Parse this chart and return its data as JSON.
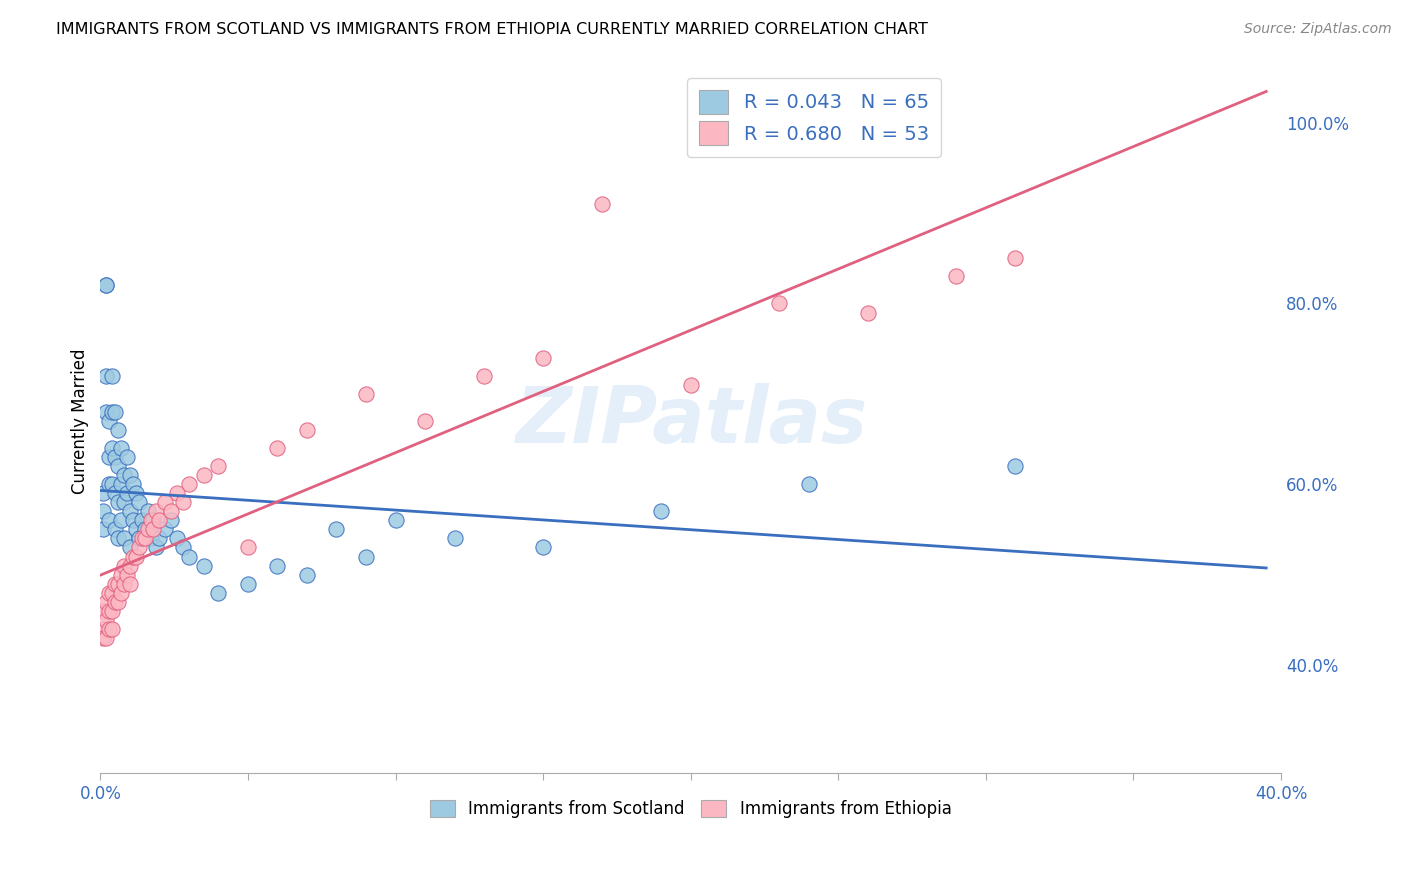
{
  "title": "IMMIGRANTS FROM SCOTLAND VS IMMIGRANTS FROM ETHIOPIA CURRENTLY MARRIED CORRELATION CHART",
  "source": "Source: ZipAtlas.com",
  "ylabel": "Currently Married",
  "ylabel_right_ticks": [
    "40.0%",
    "60.0%",
    "80.0%",
    "100.0%"
  ],
  "ylabel_right_vals": [
    0.4,
    0.6,
    0.8,
    1.0
  ],
  "scotland_color": "#9ecae1",
  "ethiopia_color": "#fcb8c2",
  "scotland_line_color": "#3a6fbf",
  "ethiopia_line_color": "#e06080",
  "watermark": "ZIPatlas",
  "xlim": [
    0.0,
    0.4
  ],
  "ylim": [
    0.28,
    1.06
  ],
  "scotland_x": [
    0.001,
    0.001,
    0.001,
    0.002,
    0.002,
    0.002,
    0.002,
    0.003,
    0.003,
    0.003,
    0.003,
    0.004,
    0.004,
    0.004,
    0.004,
    0.005,
    0.005,
    0.005,
    0.005,
    0.006,
    0.006,
    0.006,
    0.006,
    0.007,
    0.007,
    0.007,
    0.008,
    0.008,
    0.008,
    0.009,
    0.009,
    0.01,
    0.01,
    0.01,
    0.011,
    0.011,
    0.012,
    0.012,
    0.013,
    0.013,
    0.014,
    0.015,
    0.016,
    0.017,
    0.018,
    0.019,
    0.02,
    0.022,
    0.024,
    0.026,
    0.028,
    0.03,
    0.035,
    0.04,
    0.05,
    0.06,
    0.07,
    0.08,
    0.09,
    0.1,
    0.12,
    0.15,
    0.19,
    0.24,
    0.31
  ],
  "scotland_y": [
    0.59,
    0.57,
    0.55,
    0.82,
    0.82,
    0.72,
    0.68,
    0.67,
    0.63,
    0.6,
    0.56,
    0.72,
    0.68,
    0.64,
    0.6,
    0.68,
    0.63,
    0.59,
    0.55,
    0.66,
    0.62,
    0.58,
    0.54,
    0.64,
    0.6,
    0.56,
    0.61,
    0.58,
    0.54,
    0.63,
    0.59,
    0.61,
    0.57,
    0.53,
    0.6,
    0.56,
    0.59,
    0.55,
    0.58,
    0.54,
    0.56,
    0.55,
    0.57,
    0.54,
    0.56,
    0.53,
    0.54,
    0.55,
    0.56,
    0.54,
    0.53,
    0.52,
    0.51,
    0.48,
    0.49,
    0.51,
    0.5,
    0.55,
    0.52,
    0.56,
    0.54,
    0.53,
    0.57,
    0.6,
    0.62
  ],
  "ethiopia_x": [
    0.001,
    0.001,
    0.001,
    0.002,
    0.002,
    0.002,
    0.003,
    0.003,
    0.003,
    0.004,
    0.004,
    0.004,
    0.005,
    0.005,
    0.006,
    0.006,
    0.007,
    0.007,
    0.008,
    0.008,
    0.009,
    0.01,
    0.01,
    0.011,
    0.012,
    0.013,
    0.014,
    0.015,
    0.016,
    0.017,
    0.018,
    0.019,
    0.02,
    0.022,
    0.024,
    0.026,
    0.028,
    0.03,
    0.035,
    0.04,
    0.05,
    0.06,
    0.07,
    0.09,
    0.11,
    0.13,
    0.15,
    0.17,
    0.2,
    0.23,
    0.26,
    0.29,
    0.31
  ],
  "ethiopia_y": [
    0.46,
    0.44,
    0.43,
    0.47,
    0.45,
    0.43,
    0.48,
    0.46,
    0.44,
    0.48,
    0.46,
    0.44,
    0.49,
    0.47,
    0.49,
    0.47,
    0.5,
    0.48,
    0.51,
    0.49,
    0.5,
    0.51,
    0.49,
    0.52,
    0.52,
    0.53,
    0.54,
    0.54,
    0.55,
    0.56,
    0.55,
    0.57,
    0.56,
    0.58,
    0.57,
    0.59,
    0.58,
    0.6,
    0.61,
    0.62,
    0.53,
    0.64,
    0.66,
    0.7,
    0.67,
    0.72,
    0.74,
    0.91,
    0.71,
    0.8,
    0.79,
    0.83,
    0.85
  ]
}
